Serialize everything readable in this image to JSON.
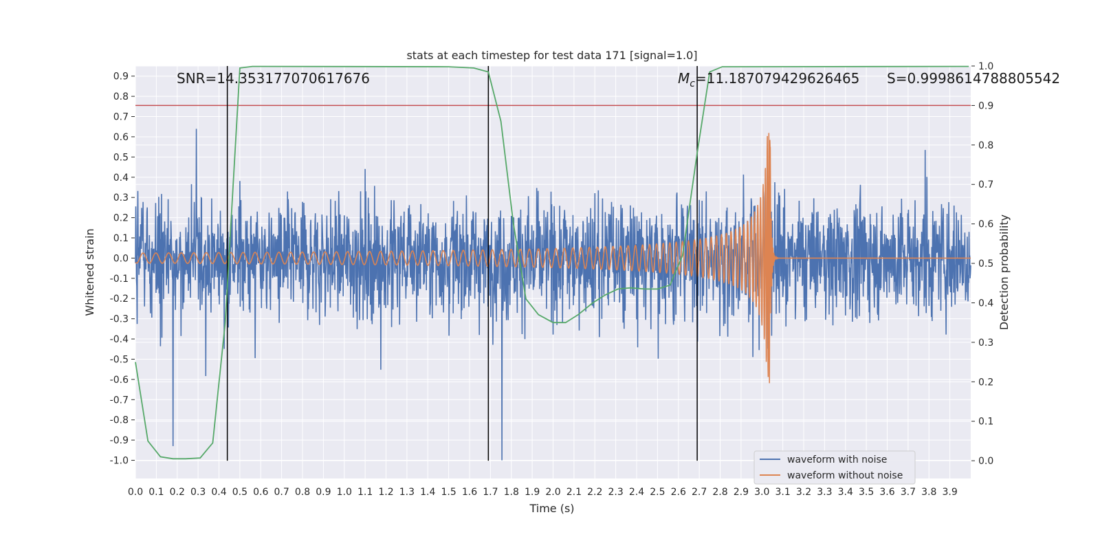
{
  "chart_data": {
    "type": "line",
    "title": "stats at each timestep for test data 171 [signal=1.0]",
    "xlabel": "Time (s)",
    "ylabel_left": "Whitened strain",
    "ylabel_right": "Detection probability",
    "xlim": [
      0.0,
      4.0
    ],
    "ylim_left": [
      -1.09,
      0.95
    ],
    "ylim_right": [
      -0.045,
      1.0
    ],
    "x_ticks": [
      "0.0",
      "0.1",
      "0.2",
      "0.3",
      "0.4",
      "0.5",
      "0.6",
      "0.7",
      "0.8",
      "0.9",
      "1.0",
      "1.1",
      "1.2",
      "1.3",
      "1.4",
      "1.5",
      "1.6",
      "1.7",
      "1.8",
      "1.9",
      "2.0",
      "2.1",
      "2.2",
      "2.3",
      "2.4",
      "2.5",
      "2.6",
      "2.7",
      "2.8",
      "2.9",
      "3.0",
      "3.1",
      "3.2",
      "3.3",
      "3.4",
      "3.5",
      "3.6",
      "3.7",
      "3.8",
      "3.9"
    ],
    "y_ticks_left": [
      "0.9",
      "0.8",
      "0.7",
      "0.6",
      "0.5",
      "0.4",
      "0.3",
      "0.2",
      "0.1",
      "0.0",
      "-0.1",
      "-0.2",
      "-0.3",
      "-0.4",
      "-0.5",
      "-0.6",
      "-0.7",
      "-0.8",
      "-0.9",
      "-1.0"
    ],
    "y_ticks_right": [
      "1.0",
      "0.9",
      "0.8",
      "0.7",
      "0.6",
      "0.5",
      "0.4",
      "0.3",
      "0.2",
      "0.1",
      "0.0"
    ],
    "grid": true,
    "annotations": {
      "snr": "SNR=14.353177070617676",
      "mc_symbol": "M",
      "mc_subscript": "c",
      "mc_value": "=11.187079429626465",
      "s": "S=0.9998614788805542"
    },
    "threshold_line": {
      "y_right": 0.9,
      "color": "#c44e52"
    },
    "vertical_lines_x": [
      0.44,
      1.69,
      2.69
    ],
    "series": [
      {
        "name": "waveform with noise",
        "axis": "left",
        "color": "#4c72b0",
        "representation": "dense noisy strain, envelope roughly ±0.4 with peaks to about ±0.75 and a dip to -1.0 near 1.75 s"
      },
      {
        "name": "waveform without noise",
        "axis": "left",
        "color": "#dd8452",
        "representation": "chirp from 0 s to merger near 3.04 s, amplitude ~0.025 rising to ~0.3, peak ~0.63 / -0.43 at merger, then ringdown to 0"
      },
      {
        "name": "detection probability",
        "axis": "right",
        "color": "#55a868",
        "x": [
          0.0,
          0.06,
          0.12,
          0.18,
          0.24,
          0.31,
          0.37,
          0.43,
          0.5,
          0.56,
          0.62,
          1.5,
          1.62,
          1.69,
          1.75,
          1.81,
          1.87,
          1.93,
          2.0,
          2.06,
          2.12,
          2.19,
          2.25,
          2.31,
          2.37,
          2.44,
          2.5,
          2.56,
          2.62,
          2.69,
          2.75,
          2.81,
          3.99
        ],
        "y": [
          0.25,
          0.05,
          0.01,
          0.005,
          0.005,
          0.007,
          0.045,
          0.35,
          0.995,
          0.999,
          0.999,
          0.998,
          0.995,
          0.985,
          0.86,
          0.6,
          0.41,
          0.37,
          0.35,
          0.35,
          0.37,
          0.4,
          0.42,
          0.435,
          0.438,
          0.435,
          0.435,
          0.445,
          0.52,
          0.78,
          0.985,
          0.998,
          0.999
        ]
      }
    ],
    "legend": {
      "position": "lower-right",
      "entries": [
        "waveform with noise",
        "waveform without noise"
      ]
    }
  }
}
